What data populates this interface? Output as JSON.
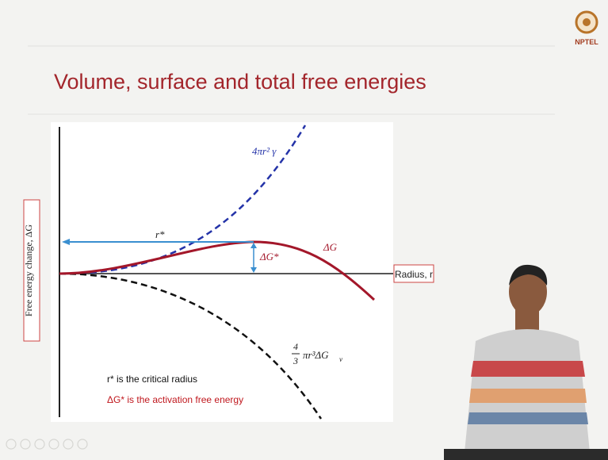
{
  "slide": {
    "title": "Volume, surface and total free energies",
    "logo_text": "NPTEL",
    "plot": {
      "y_axis_label": "Free energy change, ΔG",
      "x_axis_label": "Radius, r",
      "surface_term": "4πr² γ",
      "volume_term": {
        "numerator": "4",
        "denominator": "3",
        "body": "πr³ΔG",
        "subscript": "v"
      },
      "critical_radius_label": "r*",
      "activation_label": "ΔG*",
      "total_label": "ΔG",
      "notes": [
        "r* is the critical radius",
        "ΔG* is the activation free energy"
      ]
    }
  }
}
